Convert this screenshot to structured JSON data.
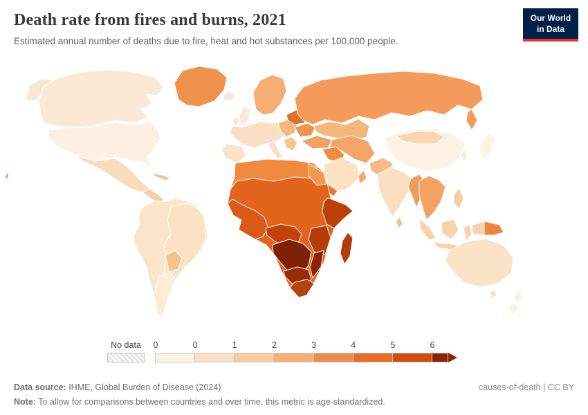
{
  "header": {
    "title": "Death rate from fires and burns, 2021",
    "subtitle": "Estimated annual number of deaths due to fire, heat and hot substances per 100,000 people.",
    "logo": {
      "line1": "Our World",
      "line2": "in Data",
      "bg": "#002147",
      "accent": "#e0362b"
    }
  },
  "legend": {
    "no_data_label": "No data",
    "ticks": [
      "0",
      "0",
      "1",
      "2",
      "3",
      "4",
      "5",
      "6"
    ],
    "colors": [
      "#fdf1e5",
      "#fbe0c6",
      "#f9cba3",
      "#f6ad76",
      "#f08c4b",
      "#e66c27",
      "#d14a10"
    ],
    "arrow_color": "#8c2306"
  },
  "map": {
    "regions": {
      "alaska": "#fae7d2",
      "canada": "#fbe9d5",
      "usa": "#fdf0e2",
      "greenland": "#f0914c",
      "iceland": "#fae6d2",
      "mexico": "#f9dcbe",
      "central_america": "#f7cfa9",
      "caribbean": "#f6c493",
      "south_america": "#fbe5ca",
      "brazil": "#fbe2c4",
      "bolivia_paraguay": "#f6c18c",
      "argentina": "#fcedd9",
      "uk": "#fceada",
      "ireland": "#fbe7d1",
      "scandinavia": "#f4ad72",
      "europe_west": "#f9dfc4",
      "iberia": "#fae3ca",
      "italy": "#fae1c6",
      "balkans": "#f6c590",
      "eastern_europe": "#f5b77c",
      "baltics_belarus": "#e4712a",
      "ukraine": "#ef9450",
      "russia": "#f49a5a",
      "central_asia": "#f6b77c",
      "turkey": "#f2a162",
      "iran": "#f4a465",
      "iraq_syria": "#ee8c42",
      "saudi": "#fbe2c4",
      "yemen": "#e8772c",
      "oman": "#f4a96b",
      "africa_base": "#e3641d",
      "north_africa": "#ef8a3e",
      "egypt": "#f2994f",
      "west_africa": "#dd5a16",
      "horn_africa": "#bd3f08",
      "central_africa": "#c44209",
      "drc_angola_zambia": "#7e2104",
      "east_africa": "#b63c08",
      "mozambique": "#8c2305",
      "southern_africa": "#9a2b05",
      "south_africa": "#b0430f",
      "madagascar": "#b23c0d",
      "pakistan_afghanistan": "#f6bb85",
      "india": "#fadfc0",
      "sri_lanka": "#f6c08a",
      "myanmar_bangladesh": "#f09c58",
      "china": "#fdf2e3",
      "mongolia": "#f9d6b2",
      "korea": "#fcebd8",
      "se_asia": "#f2a263",
      "japan": "#fdf3e6",
      "philippines": "#f8cda4",
      "indonesia": "#f9d2ac",
      "png": "#ee8440",
      "australia": "#fbe3c7",
      "new_zealand": "#fdf0e1"
    }
  },
  "footer": {
    "source_label": "Data source:",
    "source_text": " IHME, Global Burden of Disease (2024)",
    "right_text": "causes-of-death | CC BY",
    "note_label": "Note:",
    "note_text": " To allow for comparisons between countries and over time, this metric is age-standardized."
  },
  "chart_data": {
    "type": "heatmap",
    "subtype": "choropleth-world-map",
    "title": "Death rate from fires and burns, 2021",
    "subtitle": "Estimated annual number of deaths due to fire, heat and hot substances per 100,000 people.",
    "year": 2021,
    "unit": "deaths per 100,000 people (age-standardized)",
    "legend_ticks": [
      "0",
      "0",
      "1",
      "2",
      "3",
      "4",
      "5",
      "6"
    ],
    "legend_open_ended_above": 6,
    "no_data_label": "No data",
    "color_scale_light_to_dark": [
      "#fdf1e5",
      "#fbe0c6",
      "#f9cba3",
      "#f6ad76",
      "#f08c4b",
      "#e66c27",
      "#d14a10",
      "#8c2306"
    ],
    "approximate_values_by_region": [
      {
        "region": "United States",
        "approx": "0-0.5"
      },
      {
        "region": "Canada",
        "approx": "0-0.5"
      },
      {
        "region": "Greenland",
        "approx": "3-4"
      },
      {
        "region": "Mexico & Central America",
        "approx": "0.5-1"
      },
      {
        "region": "South America",
        "approx": "0-1"
      },
      {
        "region": "Western Europe",
        "approx": "0-1"
      },
      {
        "region": "Scandinavia",
        "approx": "2-3"
      },
      {
        "region": "Eastern Europe & Baltics",
        "approx": "2-4"
      },
      {
        "region": "Belarus",
        "approx": "4-5"
      },
      {
        "region": "Russia",
        "approx": "3-4"
      },
      {
        "region": "Central Asia",
        "approx": "2-3"
      },
      {
        "region": "Middle East (Iran, Iraq, Yemen)",
        "approx": "2-5"
      },
      {
        "region": "Saudi Arabia",
        "approx": "0.5-1"
      },
      {
        "region": "North Africa",
        "approx": "3-4"
      },
      {
        "region": "Sahel & West Africa",
        "approx": "4-6"
      },
      {
        "region": "Horn of Africa & East Africa",
        "approx": "5-6"
      },
      {
        "region": "Central & Southern Africa (DRC, Angola, Zambia, Zimbabwe, Mozambique)",
        "approx": ">6"
      },
      {
        "region": "Madagascar",
        "approx": "5-6"
      },
      {
        "region": "India",
        "approx": "0.5-1"
      },
      {
        "region": "Pakistan & Afghanistan",
        "approx": "1-2"
      },
      {
        "region": "China",
        "approx": "0-0.5"
      },
      {
        "region": "Southeast Asia",
        "approx": "2-3"
      },
      {
        "region": "Indonesia",
        "approx": "1-2"
      },
      {
        "region": "Philippines",
        "approx": "1-2"
      },
      {
        "region": "Japan",
        "approx": "0-0.5"
      },
      {
        "region": "Papua New Guinea",
        "approx": "3-4"
      },
      {
        "region": "Australia & New Zealand",
        "approx": "0-1"
      }
    ]
  }
}
